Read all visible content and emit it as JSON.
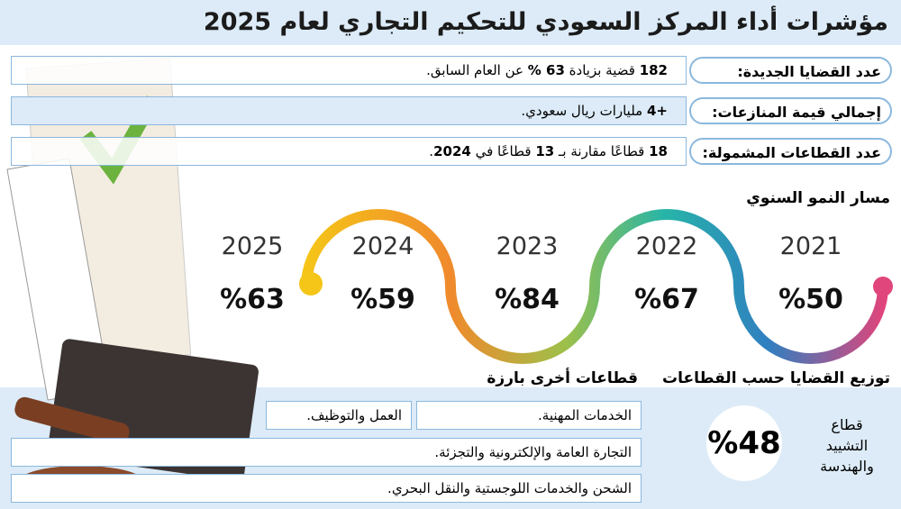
{
  "header": {
    "title": "مؤشرات أداء المركز السعودي للتحكيم التجاري لعام 2025"
  },
  "stats": [
    {
      "label": "عدد القضايا الجديدة:",
      "parts": [
        {
          "text": "182",
          "bold": true
        },
        {
          "text": " قضية بزيادة ",
          "bold": false
        },
        {
          "text": "63 %",
          "bold": true
        },
        {
          "text": " عن العام السابق.",
          "bold": false
        }
      ]
    },
    {
      "label": "إجمالي قيمة المنازعات:",
      "parts": [
        {
          "text": "+4",
          "bold": true
        },
        {
          "text": " مليارات ريال سعودي.",
          "bold": false
        }
      ]
    },
    {
      "label": "عدد القطاعات المشمولة:",
      "parts": [
        {
          "text": "18",
          "bold": true
        },
        {
          "text": " قطاعًا  مقارنة بـ ",
          "bold": false
        },
        {
          "text": "13",
          "bold": true
        },
        {
          "text": " قطاعًا في ",
          "bold": false
        },
        {
          "text": "2024",
          "bold": true
        },
        {
          "text": ".",
          "bold": false
        }
      ]
    }
  ],
  "growth": {
    "title": "مسار النمو السنوي",
    "points": [
      {
        "year": "2021",
        "value": "%50"
      },
      {
        "year": "2022",
        "value": "%67"
      },
      {
        "year": "2023",
        "value": "%84"
      },
      {
        "year": "2024",
        "value": "%59"
      },
      {
        "year": "2025",
        "value": "%63"
      }
    ]
  },
  "distribution": {
    "title": "توزيع القضايا حسب القطاعات",
    "main_sector": {
      "name_lines": [
        "قطاع",
        "التشييد",
        "والهندسة"
      ],
      "value": "%48"
    },
    "others_title": "قطاعات أخرى بارزة",
    "others": [
      "الخدمات المهنية.",
      "العمل والتوظيف.",
      "التجارة العامة والإلكترونية والتجزئة.",
      "الشحن والخدمات اللوجستية والنقل البحري."
    ]
  }
}
